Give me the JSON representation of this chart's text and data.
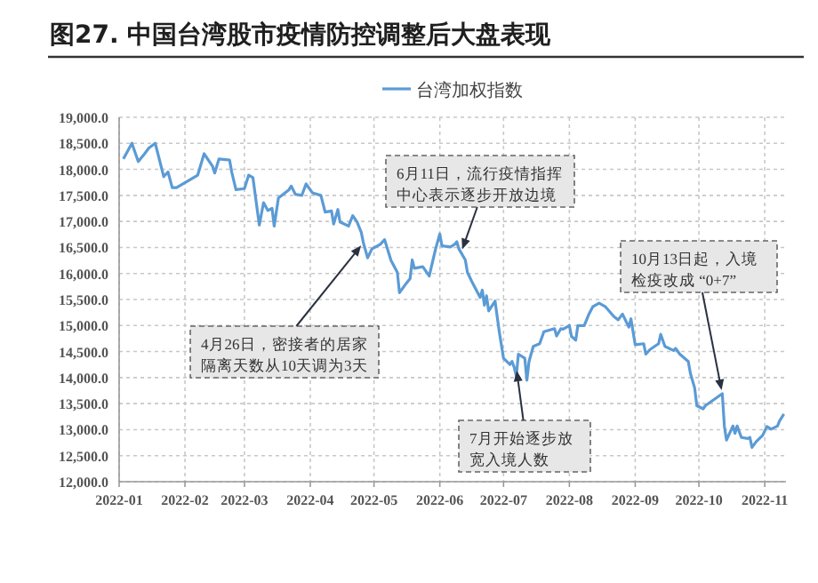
{
  "chart_data": {
    "type": "line",
    "title": "图27. 中国台湾股市疫情防控调整后大盘表现",
    "x": [
      "2022-01-03",
      "2022-01-07",
      "2022-01-10",
      "2022-01-13",
      "2022-01-15",
      "2022-01-18",
      "2022-01-20",
      "2022-01-22",
      "2022-01-24",
      "2022-01-26",
      "2022-01-28",
      "2022-02-07",
      "2022-02-10",
      "2022-02-14",
      "2022-02-15",
      "2022-02-17",
      "2022-02-22",
      "2022-02-23",
      "2022-02-25",
      "2022-03-01",
      "2022-03-03",
      "2022-03-05",
      "2022-03-08",
      "2022-03-10",
      "2022-03-12",
      "2022-03-14",
      "2022-03-15",
      "2022-03-17",
      "2022-03-22",
      "2022-03-23",
      "2022-03-25",
      "2022-03-28",
      "2022-03-30",
      "2022-04-02",
      "2022-04-06",
      "2022-04-08",
      "2022-04-11",
      "2022-04-12",
      "2022-04-14",
      "2022-04-15",
      "2022-04-19",
      "2022-04-21",
      "2022-04-23",
      "2022-04-25",
      "2022-04-26",
      "2022-04-28",
      "2022-04-30",
      "2022-05-04",
      "2022-05-06",
      "2022-05-09",
      "2022-05-12",
      "2022-05-13",
      "2022-05-16",
      "2022-05-18",
      "2022-05-19",
      "2022-05-20",
      "2022-05-24",
      "2022-05-27",
      "2022-05-30",
      "2022-06-01",
      "2022-06-02",
      "2022-06-06",
      "2022-06-08",
      "2022-06-09",
      "2022-06-10",
      "2022-06-13",
      "2022-06-14",
      "2022-06-16",
      "2022-06-20",
      "2022-06-21",
      "2022-06-22",
      "2022-06-23",
      "2022-06-24",
      "2022-06-27",
      "2022-06-29",
      "2022-07-01",
      "2022-07-04",
      "2022-07-05",
      "2022-07-06",
      "2022-07-07",
      "2022-07-08",
      "2022-07-11",
      "2022-07-12",
      "2022-07-13",
      "2022-07-15",
      "2022-07-18",
      "2022-07-20",
      "2022-07-25",
      "2022-07-26",
      "2022-07-28",
      "2022-07-29",
      "2022-08-01",
      "2022-08-02",
      "2022-08-04",
      "2022-08-05",
      "2022-08-08",
      "2022-08-10",
      "2022-08-12",
      "2022-08-15",
      "2022-08-18",
      "2022-08-22",
      "2022-08-24",
      "2022-08-26",
      "2022-08-29",
      "2022-08-30",
      "2022-09-01",
      "2022-09-05",
      "2022-09-06",
      "2022-09-08",
      "2022-09-12",
      "2022-09-13",
      "2022-09-15",
      "2022-09-19",
      "2022-09-20",
      "2022-09-22",
      "2022-09-26",
      "2022-09-27",
      "2022-09-29",
      "2022-09-30",
      "2022-10-03",
      "2022-10-04",
      "2022-10-12",
      "2022-10-13",
      "2022-10-14",
      "2022-10-17",
      "2022-10-18",
      "2022-10-19",
      "2022-10-21",
      "2022-10-24",
      "2022-10-25",
      "2022-10-26",
      "2022-10-28",
      "2022-10-31",
      "2022-11-02",
      "2022-11-04",
      "2022-11-07",
      "2022-11-08",
      "2022-11-10"
    ],
    "series": [
      {
        "name": "台湾加权指数",
        "color": "#5b9bd5",
        "values": [
          18200,
          18500,
          18150,
          18300,
          18410,
          18500,
          18180,
          17860,
          17950,
          17650,
          17650,
          17890,
          18300,
          18060,
          17930,
          18200,
          18180,
          17950,
          17610,
          17630,
          17890,
          17840,
          16930,
          17360,
          17210,
          17250,
          16910,
          17450,
          17610,
          17680,
          17520,
          17500,
          17720,
          17550,
          17500,
          17180,
          17200,
          16950,
          17230,
          16990,
          16910,
          17110,
          16990,
          16790,
          16590,
          16300,
          16470,
          16560,
          16650,
          16250,
          16020,
          15630,
          15800,
          15900,
          16260,
          16100,
          16130,
          15950,
          16470,
          16760,
          16530,
          16510,
          16560,
          16610,
          16470,
          16260,
          16020,
          15850,
          15540,
          15680,
          15390,
          15570,
          15280,
          15470,
          14880,
          14370,
          14250,
          14310,
          14200,
          14030,
          14450,
          14370,
          13950,
          14310,
          14600,
          14650,
          14880,
          14940,
          14800,
          14940,
          14930,
          15000,
          14790,
          14720,
          15000,
          15000,
          15200,
          15360,
          15430,
          15360,
          15170,
          15110,
          15220,
          14970,
          15130,
          14630,
          14650,
          14450,
          14540,
          14650,
          14830,
          14600,
          14520,
          14560,
          14450,
          14310,
          14080,
          13800,
          13460,
          13400,
          13460,
          13690,
          13060,
          12800,
          13070,
          12930,
          13070,
          12850,
          12830,
          12850,
          12660,
          12770,
          12890,
          13060,
          13010,
          13070,
          13170,
          13300
        ]
      }
    ],
    "xlim": [
      "2022-01-01",
      "2022-11-11"
    ],
    "xticks": [
      "2022-01",
      "2022-02",
      "2022-03",
      "2022-04",
      "2022-05",
      "2022-06",
      "2022-07",
      "2022-08",
      "2022-09",
      "2022-10",
      "2022-11"
    ],
    "ylim": [
      12000,
      19000
    ],
    "yticks": [
      {
        "value": 12000,
        "label": "12,000.0"
      },
      {
        "value": 12500,
        "label": "12,500.0"
      },
      {
        "value": 13000,
        "label": "13,000.0"
      },
      {
        "value": 13500,
        "label": "13,500.0"
      },
      {
        "value": 14000,
        "label": "14,000.0"
      },
      {
        "value": 14500,
        "label": "14,500.0"
      },
      {
        "value": 15000,
        "label": "15,000.0"
      },
      {
        "value": 15500,
        "label": "15,500.0"
      },
      {
        "value": 16000,
        "label": "16,000.0"
      },
      {
        "value": 16500,
        "label": "16,500.0"
      },
      {
        "value": 17000,
        "label": "17,000.0"
      },
      {
        "value": 17500,
        "label": "17,500.0"
      },
      {
        "value": 18000,
        "label": "18,000.0"
      },
      {
        "value": 18500,
        "label": "18,500.0"
      },
      {
        "value": 19000,
        "label": "19,000.0"
      }
    ],
    "grid": true,
    "legend": "top",
    "marker": "none",
    "line_style": "solid",
    "annotations": [
      {
        "text": "4月26日，密接者的居家隔离天数从10天调为3天",
        "x": "2022-04-26",
        "y": 16590
      },
      {
        "text": "6月11日，流行疫情指挥中心表示逐步开放边境",
        "x": "2022-06-11",
        "y": 16400
      },
      {
        "text": "7月开始逐步放宽入境人数",
        "x": "2022-07-07",
        "y": 14200
      },
      {
        "text": "10月13日起，入境检疫改成 “0+7”",
        "x": "2022-10-12",
        "y": 13690
      }
    ]
  }
}
